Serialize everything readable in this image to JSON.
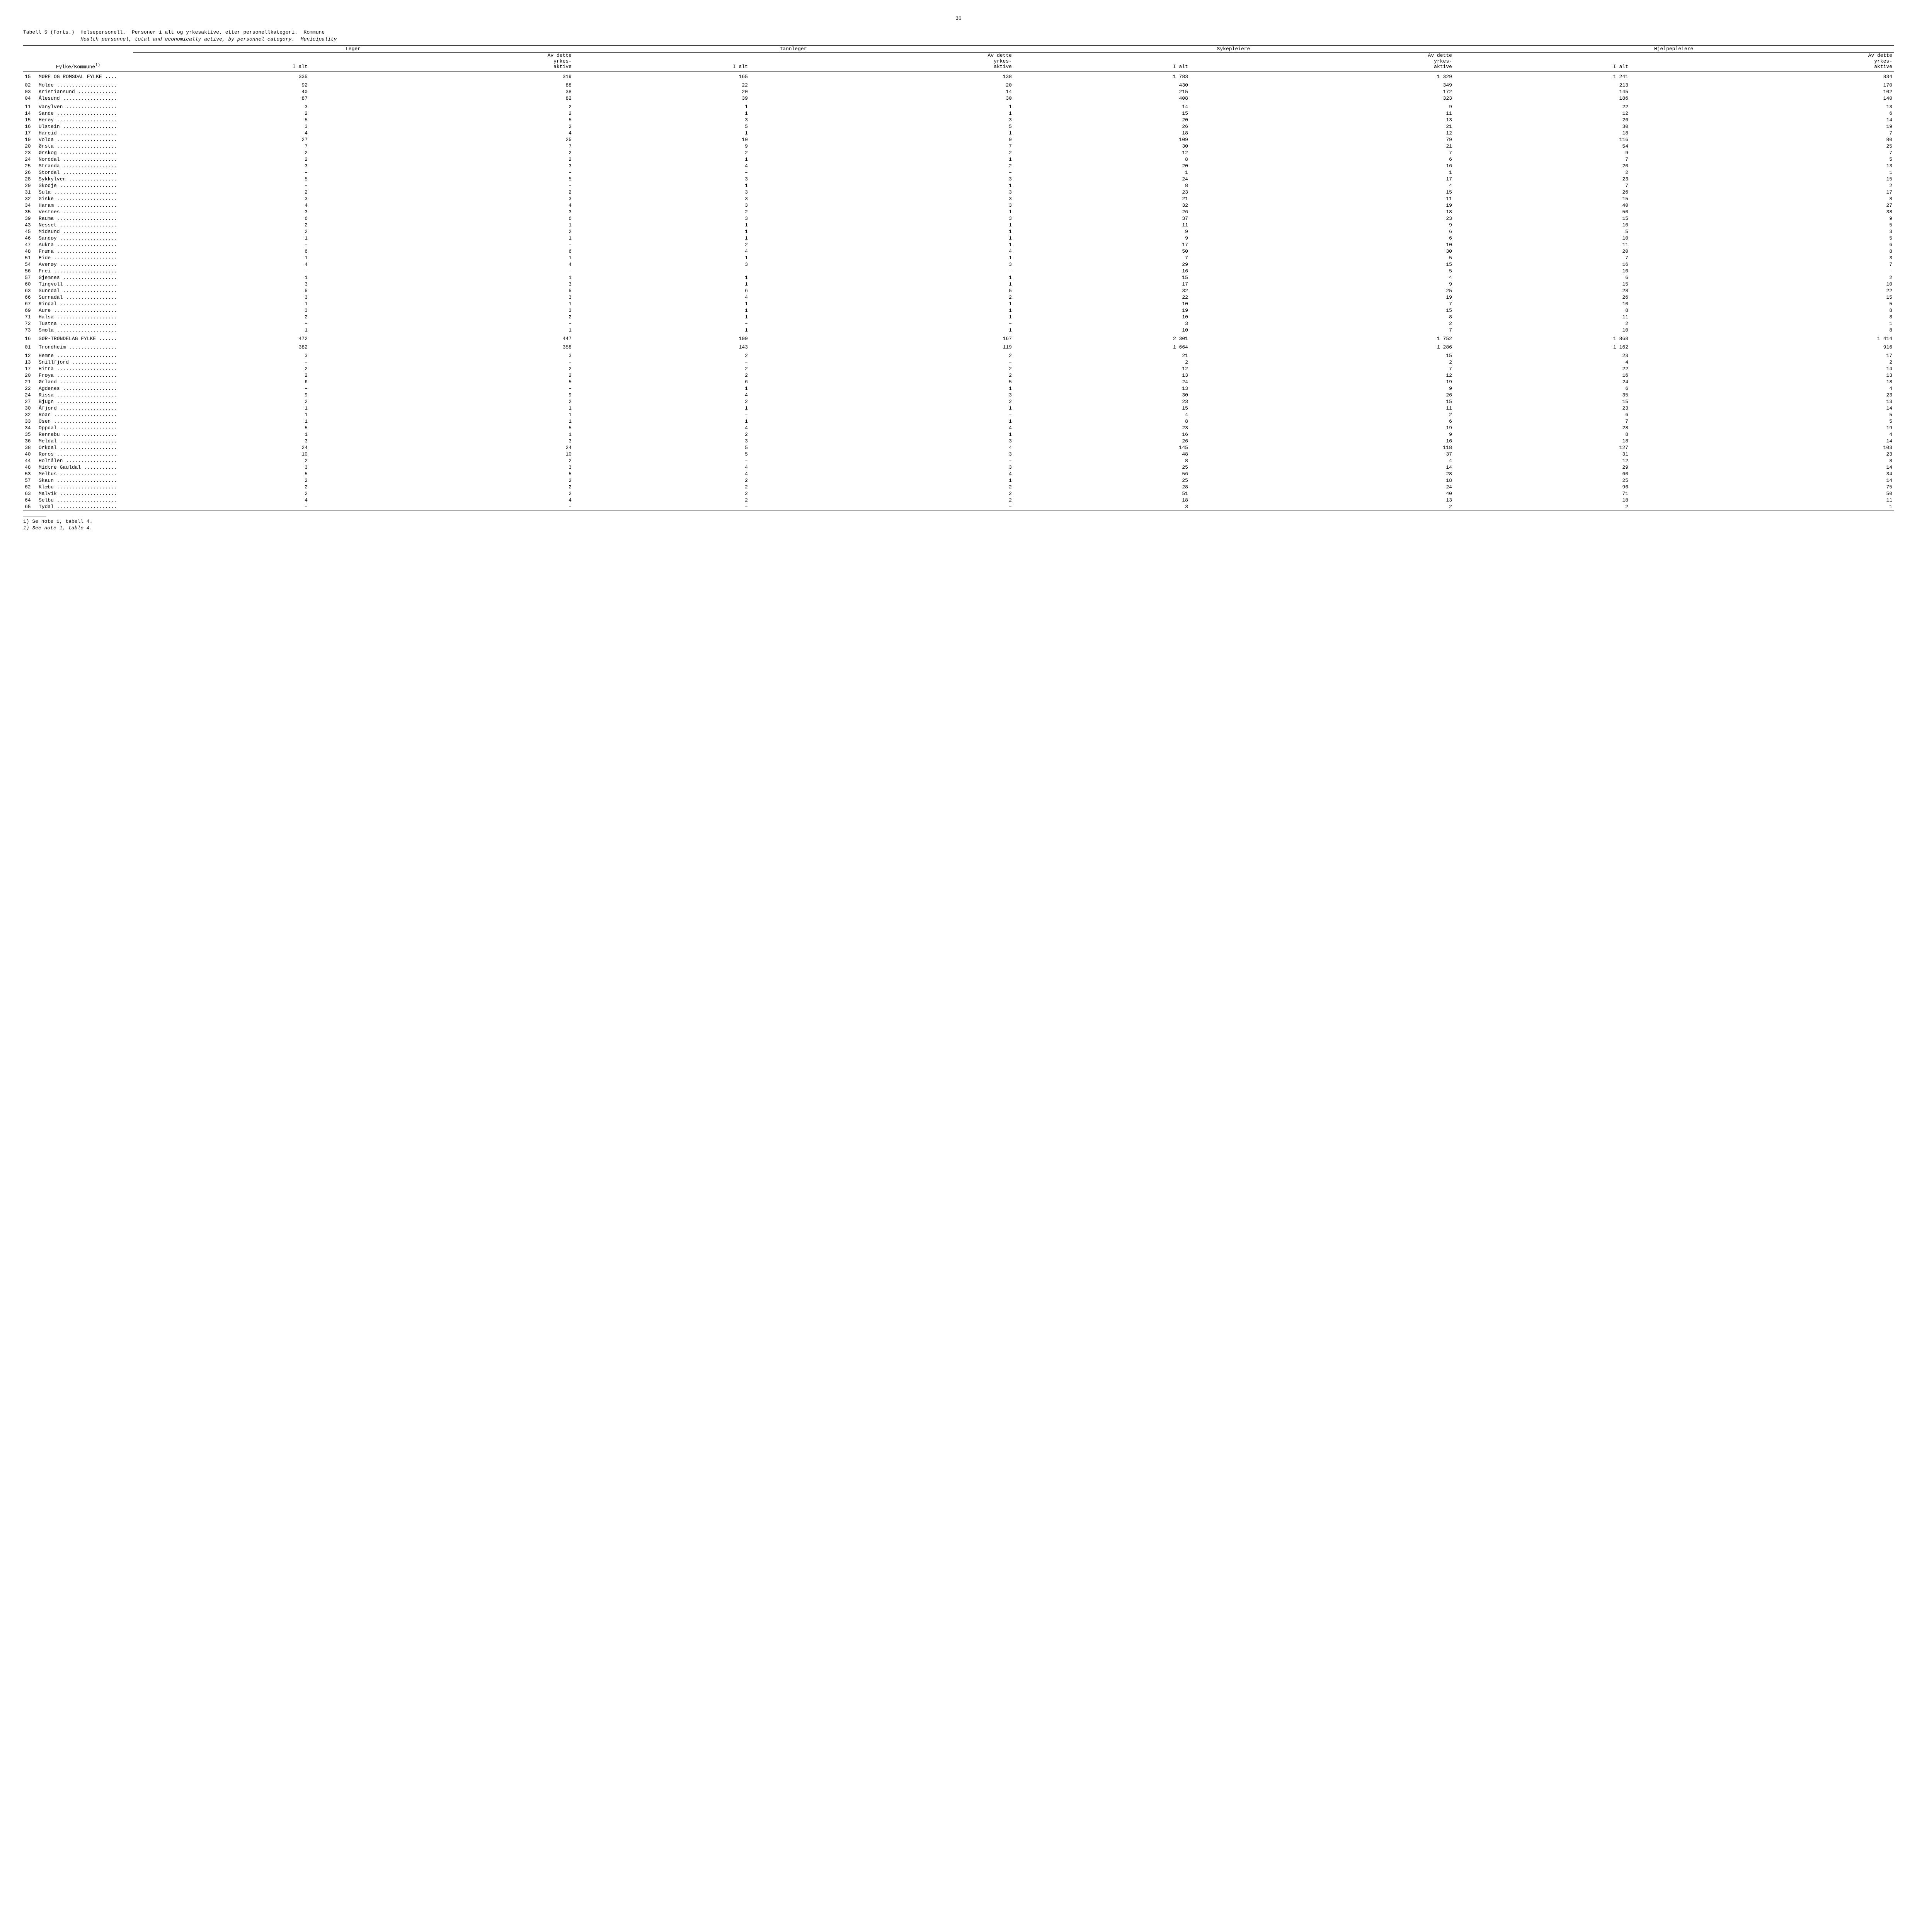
{
  "page_number": "30",
  "caption_l1_a": "Tabell 5 (forts.)",
  "caption_l1_b": "Helsepersonell.  Personer i alt og yrkesaktive, etter personellkategori.  Kommune",
  "caption_l2": "Health personnel, total and economically active, by personnel category.  Municipality",
  "stub_header": "Fylke/Kommune",
  "stub_sup": "1)",
  "groups": [
    "Leger",
    "Tannleger",
    "Sykepleiere",
    "Hjelpepleiere"
  ],
  "col_ialt": "I alt",
  "col_av1": "Av dette",
  "col_av2": "yrkes-",
  "col_av3": "aktive",
  "rows": [
    {
      "code": "15",
      "name": "MØRE OG ROMSDAL FYLKE",
      "spacer": true,
      "v": [
        "335",
        "319",
        "165",
        "138",
        "1 783",
        "1 329",
        "1 241",
        "834"
      ]
    },
    {
      "code": "02",
      "name": "Molde",
      "spacer": true,
      "v": [
        "92",
        "88",
        "22",
        "20",
        "430",
        "349",
        "213",
        "170"
      ]
    },
    {
      "code": "03",
      "name": "Kristiansund",
      "v": [
        "40",
        "38",
        "20",
        "14",
        "215",
        "172",
        "145",
        "102"
      ]
    },
    {
      "code": "04",
      "name": "Ålesund",
      "v": [
        "87",
        "82",
        "39",
        "30",
        "408",
        "323",
        "186",
        "140"
      ]
    },
    {
      "code": "11",
      "name": "Vanylven",
      "spacer": true,
      "v": [
        "3",
        "2",
        "1",
        "1",
        "14",
        "9",
        "22",
        "13"
      ]
    },
    {
      "code": "14",
      "name": "Sande",
      "v": [
        "2",
        "2",
        "1",
        "1",
        "15",
        "11",
        "12",
        "6"
      ]
    },
    {
      "code": "15",
      "name": "Herøy",
      "v": [
        "5",
        "5",
        "3",
        "3",
        "20",
        "13",
        "26",
        "14"
      ]
    },
    {
      "code": "16",
      "name": "Ulstein",
      "v": [
        "3",
        "2",
        "5",
        "5",
        "26",
        "21",
        "30",
        "19"
      ]
    },
    {
      "code": "17",
      "name": "Hareid",
      "v": [
        "4",
        "4",
        "1",
        "1",
        "18",
        "12",
        "18",
        "7"
      ]
    },
    {
      "code": "19",
      "name": "Volda",
      "v": [
        "27",
        "25",
        "10",
        "9",
        "109",
        "79",
        "116",
        "80"
      ]
    },
    {
      "code": "20",
      "name": "Ørsta",
      "v": [
        "7",
        "7",
        "9",
        "7",
        "30",
        "21",
        "54",
        "25"
      ]
    },
    {
      "code": "23",
      "name": "Ørskog",
      "v": [
        "2",
        "2",
        "2",
        "2",
        "12",
        "7",
        "9",
        "7"
      ]
    },
    {
      "code": "24",
      "name": "Norddal",
      "v": [
        "2",
        "2",
        "1",
        "1",
        "8",
        "6",
        "7",
        "5"
      ]
    },
    {
      "code": "25",
      "name": "Stranda",
      "v": [
        "3",
        "3",
        "4",
        "2",
        "20",
        "16",
        "20",
        "13"
      ]
    },
    {
      "code": "26",
      "name": "Stordal",
      "v": [
        "–",
        "–",
        "–",
        "–",
        "1",
        "1",
        "2",
        "1"
      ]
    },
    {
      "code": "28",
      "name": "Sykkylven",
      "v": [
        "5",
        "5",
        "3",
        "3",
        "24",
        "17",
        "23",
        "15"
      ]
    },
    {
      "code": "29",
      "name": "Skodje",
      "v": [
        "–",
        "–",
        "1",
        "1",
        "8",
        "4",
        "7",
        "2"
      ]
    },
    {
      "code": "31",
      "name": "Sula",
      "v": [
        "2",
        "2",
        "3",
        "3",
        "23",
        "15",
        "26",
        "17"
      ]
    },
    {
      "code": "32",
      "name": "Giske",
      "v": [
        "3",
        "3",
        "3",
        "3",
        "21",
        "11",
        "15",
        "8"
      ]
    },
    {
      "code": "34",
      "name": "Haram",
      "v": [
        "4",
        "4",
        "3",
        "3",
        "32",
        "19",
        "40",
        "27"
      ]
    },
    {
      "code": "35",
      "name": "Vestnes",
      "v": [
        "3",
        "3",
        "2",
        "1",
        "26",
        "18",
        "50",
        "38"
      ]
    },
    {
      "code": "39",
      "name": "Rauma",
      "v": [
        "6",
        "6",
        "3",
        "3",
        "37",
        "23",
        "15",
        "9"
      ]
    },
    {
      "code": "43",
      "name": "Nesset",
      "v": [
        "2",
        "1",
        "1",
        "1",
        "11",
        "9",
        "10",
        "5"
      ]
    },
    {
      "code": "45",
      "name": "Midsund",
      "v": [
        "2",
        "2",
        "1",
        "1",
        "9",
        "6",
        "5",
        "3"
      ]
    },
    {
      "code": "46",
      "name": "Sandøy",
      "v": [
        "1",
        "1",
        "1",
        "1",
        "9",
        "6",
        "10",
        "5"
      ]
    },
    {
      "code": "47",
      "name": "Aukra",
      "v": [
        "–",
        "–",
        "2",
        "1",
        "17",
        "10",
        "11",
        "6"
      ]
    },
    {
      "code": "48",
      "name": "Fræna",
      "v": [
        "6",
        "6",
        "4",
        "4",
        "50",
        "30",
        "20",
        "8"
      ]
    },
    {
      "code": "51",
      "name": "Eide",
      "v": [
        "1",
        "1",
        "1",
        "1",
        "7",
        "5",
        "7",
        "3"
      ]
    },
    {
      "code": "54",
      "name": "Averøy",
      "v": [
        "4",
        "4",
        "3",
        "3",
        "29",
        "15",
        "16",
        "7"
      ]
    },
    {
      "code": "56",
      "name": "Frei",
      "v": [
        "–",
        "–",
        "–",
        "–",
        "16",
        "5",
        "10",
        "–"
      ]
    },
    {
      "code": "57",
      "name": "Gjemnes",
      "v": [
        "1",
        "1",
        "1",
        "1",
        "15",
        "4",
        "6",
        "2"
      ]
    },
    {
      "code": "60",
      "name": "Tingvoll",
      "v": [
        "3",
        "3",
        "1",
        "1",
        "17",
        "9",
        "15",
        "10"
      ]
    },
    {
      "code": "63",
      "name": "Sunndal",
      "v": [
        "5",
        "5",
        "6",
        "5",
        "32",
        "25",
        "28",
        "22"
      ]
    },
    {
      "code": "66",
      "name": "Surnadal",
      "v": [
        "3",
        "3",
        "4",
        "2",
        "22",
        "19",
        "26",
        "15"
      ]
    },
    {
      "code": "67",
      "name": "Rindal",
      "v": [
        "1",
        "1",
        "1",
        "1",
        "10",
        "7",
        "10",
        "5"
      ]
    },
    {
      "code": "69",
      "name": "Aure",
      "v": [
        "3",
        "3",
        "1",
        "1",
        "19",
        "15",
        "8",
        "8"
      ]
    },
    {
      "code": "71",
      "name": "Halsa",
      "v": [
        "2",
        "2",
        "1",
        "1",
        "10",
        "8",
        "11",
        "8"
      ]
    },
    {
      "code": "72",
      "name": "Tustna",
      "v": [
        "–",
        "–",
        "–",
        "–",
        "3",
        "2",
        "2",
        "1"
      ]
    },
    {
      "code": "73",
      "name": "Smøla",
      "v": [
        "1",
        "1",
        "1",
        "1",
        "10",
        "7",
        "10",
        "8"
      ]
    },
    {
      "code": "16",
      "name": "SØR-TRØNDELAG FYLKE",
      "spacer": true,
      "v": [
        "472",
        "447",
        "199",
        "167",
        "2 301",
        "1 752",
        "1 868",
        "1 414"
      ]
    },
    {
      "code": "01",
      "name": "Trondheim",
      "spacer": true,
      "v": [
        "382",
        "358",
        "143",
        "119",
        "1 664",
        "1 286",
        "1 162",
        "916"
      ]
    },
    {
      "code": "12",
      "name": "Hemne",
      "spacer": true,
      "v": [
        "3",
        "3",
        "2",
        "2",
        "21",
        "15",
        "23",
        "17"
      ]
    },
    {
      "code": "13",
      "name": "Snillfjord",
      "v": [
        "–",
        "–",
        "–",
        "–",
        "2",
        "2",
        "4",
        "2"
      ]
    },
    {
      "code": "17",
      "name": "Hitra",
      "v": [
        "2",
        "2",
        "2",
        "2",
        "12",
        "7",
        "22",
        "14"
      ]
    },
    {
      "code": "20",
      "name": "Frøya",
      "v": [
        "2",
        "2",
        "2",
        "2",
        "13",
        "12",
        "16",
        "13"
      ]
    },
    {
      "code": "21",
      "name": "Ørland",
      "v": [
        "6",
        "5",
        "6",
        "5",
        "24",
        "19",
        "24",
        "18"
      ]
    },
    {
      "code": "22",
      "name": "Agdenes",
      "v": [
        "–",
        "–",
        "1",
        "1",
        "13",
        "9",
        "6",
        "4"
      ]
    },
    {
      "code": "24",
      "name": "Rissa",
      "v": [
        "9",
        "9",
        "4",
        "3",
        "30",
        "26",
        "35",
        "23"
      ]
    },
    {
      "code": "27",
      "name": "Bjugn",
      "v": [
        "2",
        "2",
        "2",
        "2",
        "23",
        "15",
        "15",
        "13"
      ]
    },
    {
      "code": "30",
      "name": "Åfjord",
      "v": [
        "1",
        "1",
        "1",
        "1",
        "15",
        "11",
        "23",
        "14"
      ]
    },
    {
      "code": "32",
      "name": "Roan",
      "v": [
        "1",
        "1",
        "–",
        "–",
        "4",
        "2",
        "6",
        "5"
      ]
    },
    {
      "code": "33",
      "name": "Osen",
      "v": [
        "1",
        "1",
        "1",
        "1",
        "8",
        "6",
        "7",
        "5"
      ]
    },
    {
      "code": "34",
      "name": "Oppdal",
      "v": [
        "5",
        "5",
        "4",
        "4",
        "23",
        "19",
        "28",
        "19"
      ]
    },
    {
      "code": "35",
      "name": "Rennebu",
      "v": [
        "1",
        "1",
        "2",
        "1",
        "16",
        "9",
        "8",
        "4"
      ]
    },
    {
      "code": "36",
      "name": "Meldal",
      "v": [
        "3",
        "3",
        "3",
        "3",
        "26",
        "16",
        "18",
        "14"
      ]
    },
    {
      "code": "38",
      "name": "Orkdal",
      "v": [
        "24",
        "24",
        "5",
        "4",
        "145",
        "118",
        "127",
        "103"
      ]
    },
    {
      "code": "40",
      "name": "Røros",
      "v": [
        "10",
        "10",
        "5",
        "3",
        "48",
        "37",
        "31",
        "23"
      ]
    },
    {
      "code": "44",
      "name": "Holtålen",
      "v": [
        "2",
        "2",
        "–",
        "–",
        "8",
        "4",
        "12",
        "8"
      ]
    },
    {
      "code": "48",
      "name": "Midtre Gauldal",
      "v": [
        "3",
        "3",
        "4",
        "3",
        "25",
        "14",
        "29",
        "14"
      ]
    },
    {
      "code": "53",
      "name": "Melhus",
      "v": [
        "5",
        "5",
        "4",
        "4",
        "56",
        "28",
        "60",
        "34"
      ]
    },
    {
      "code": "57",
      "name": "Skaun",
      "v": [
        "2",
        "2",
        "2",
        "1",
        "25",
        "18",
        "25",
        "14"
      ]
    },
    {
      "code": "62",
      "name": "Klæbu",
      "v": [
        "2",
        "2",
        "2",
        "2",
        "28",
        "24",
        "96",
        "75"
      ]
    },
    {
      "code": "63",
      "name": "Malvik",
      "v": [
        "2",
        "2",
        "2",
        "2",
        "51",
        "40",
        "71",
        "50"
      ]
    },
    {
      "code": "64",
      "name": "Selbu",
      "v": [
        "4",
        "4",
        "2",
        "2",
        "18",
        "13",
        "18",
        "11"
      ]
    },
    {
      "code": "65",
      "name": "Tydal",
      "v": [
        "–",
        "–",
        "–",
        "–",
        "3",
        "2",
        "2",
        "1"
      ]
    }
  ],
  "footnote1": "1) Se note 1, tabell 4.",
  "footnote2": "1) See note 1, table 4.",
  "style": {
    "name_width_chars": 25,
    "leader_char": "."
  }
}
